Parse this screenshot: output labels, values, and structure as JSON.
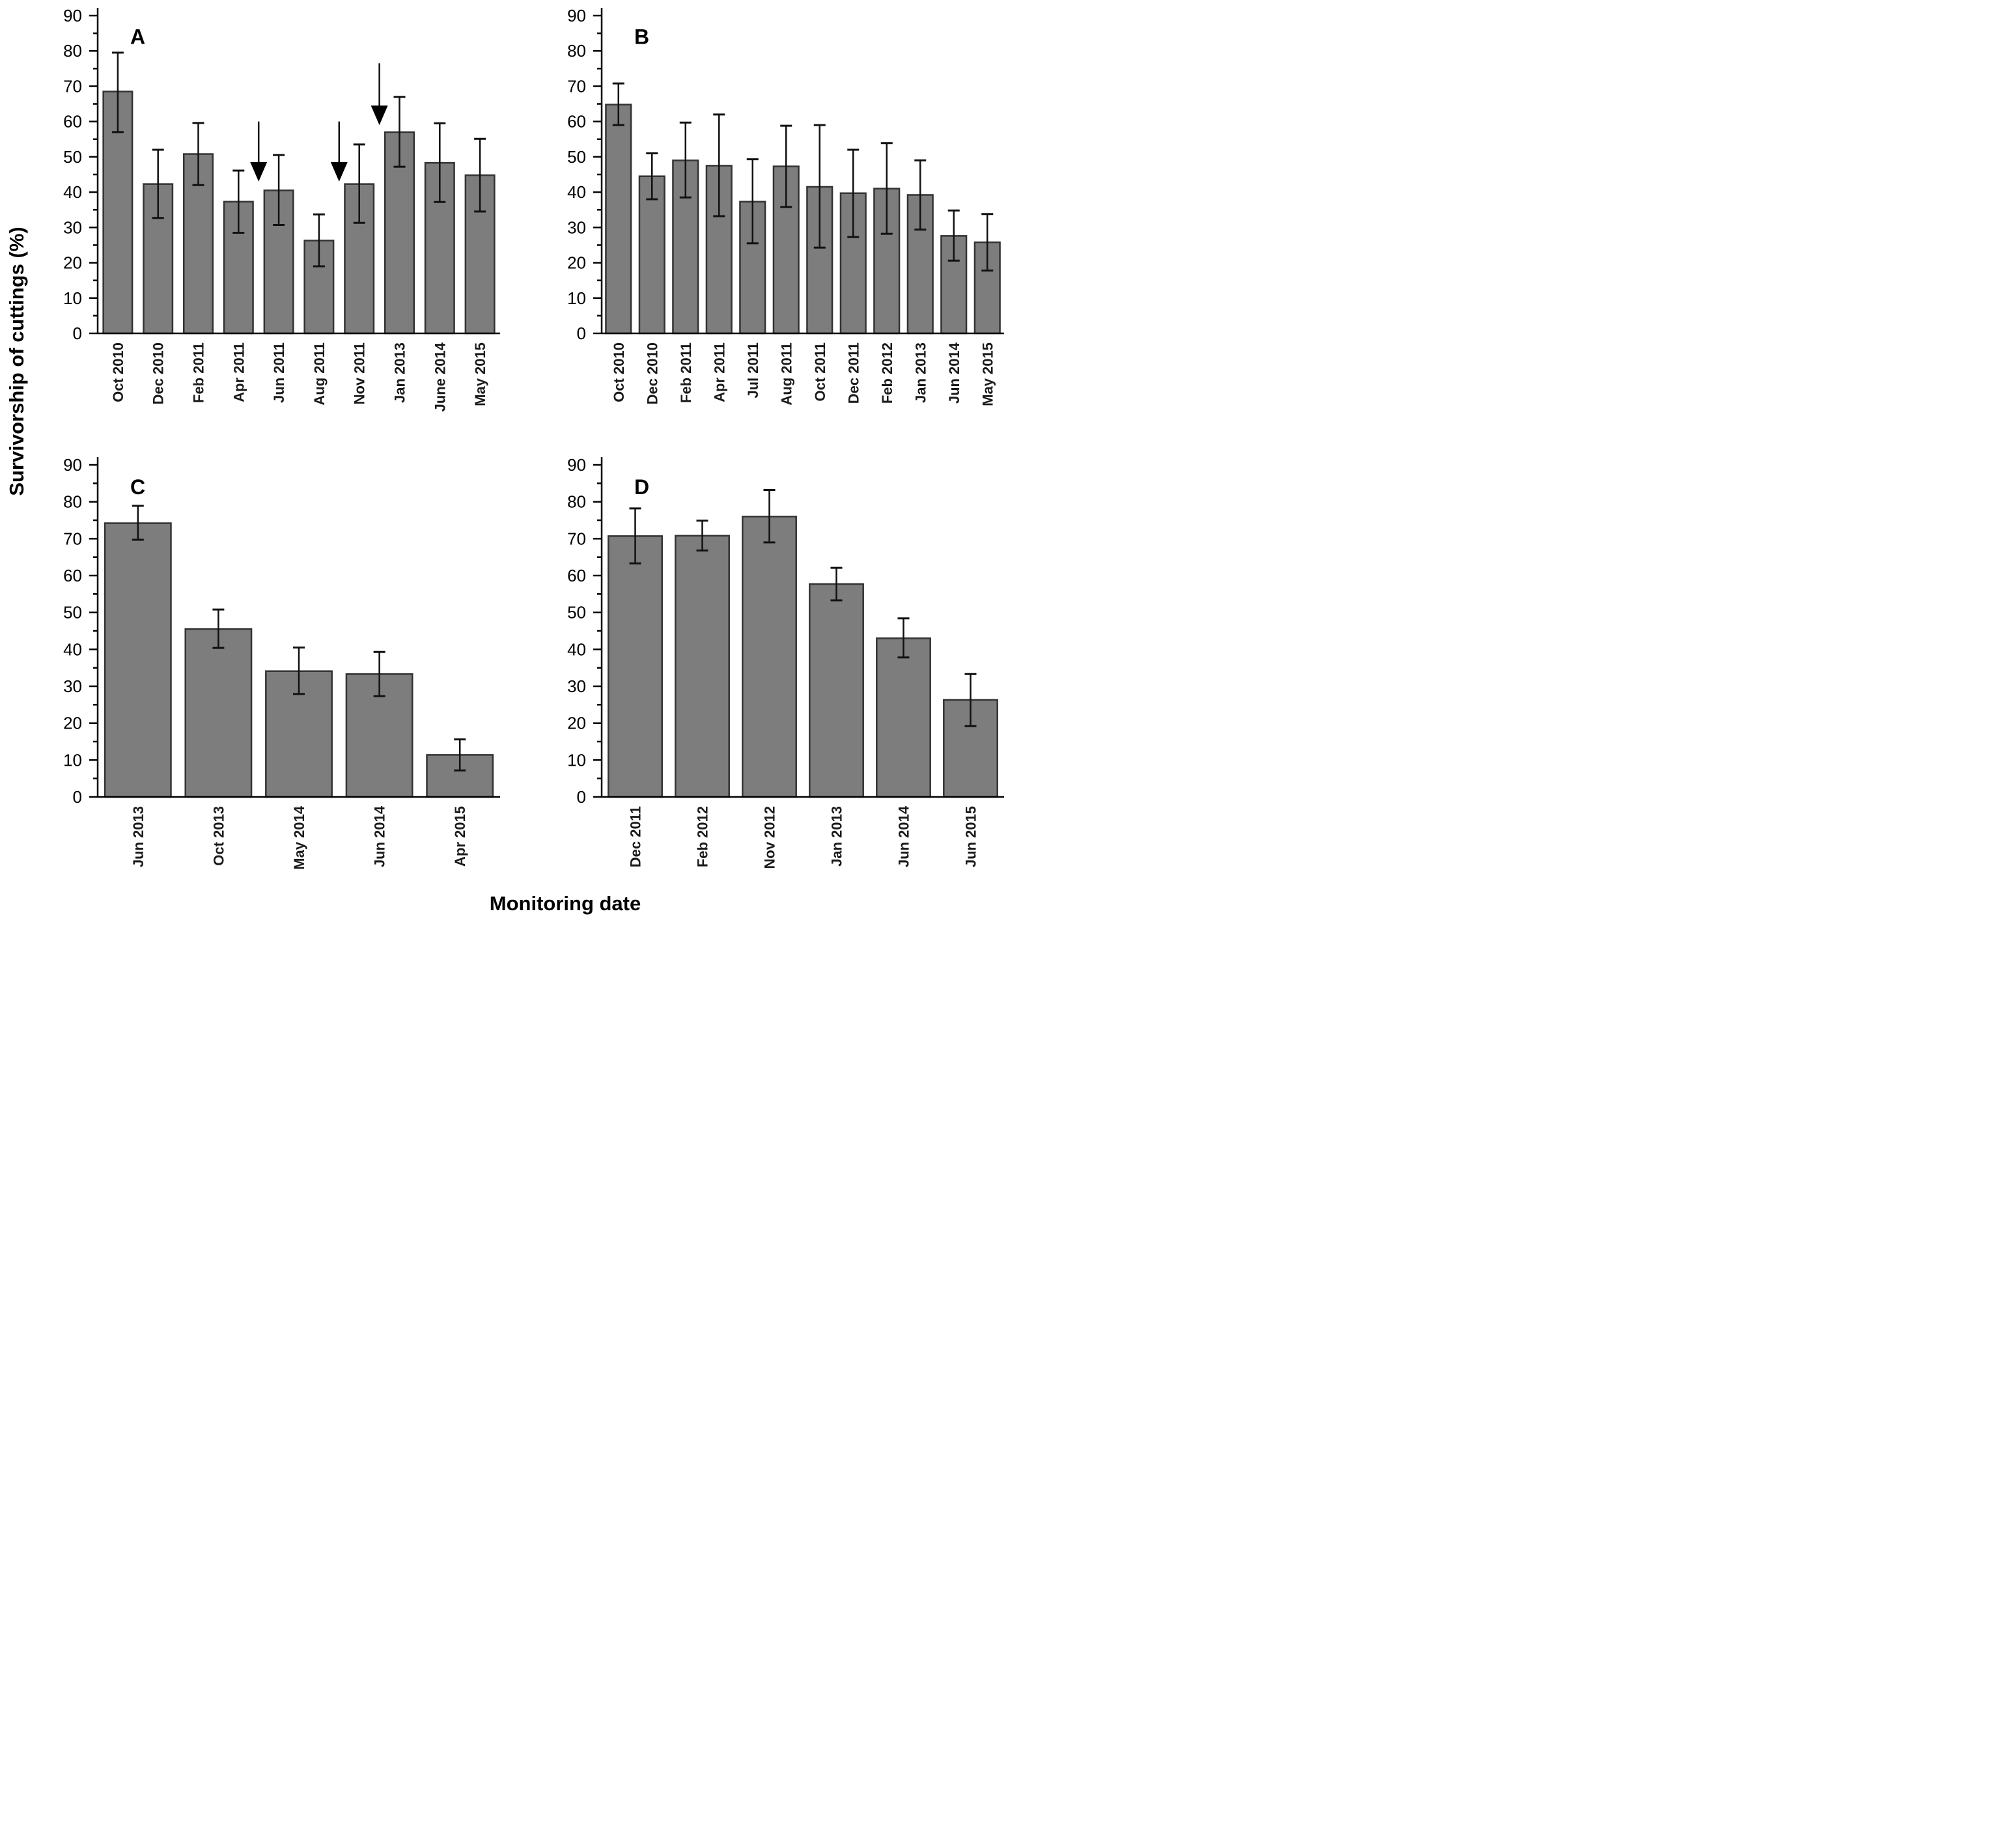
{
  "figure": {
    "ylabel": "Survivorship of cuttings (%)",
    "xlabel": "Monitoring date",
    "bar_color": "#7d7d7d",
    "bar_border_color": "#333333",
    "axis_color": "#000000",
    "axis": {
      "ymin": 0,
      "ymax": 90,
      "major": 10,
      "minor": 5
    }
  },
  "chart_data": [
    {
      "type": "bar",
      "panel": "A",
      "title": "",
      "xlabel": "",
      "ylabel": "Survivorship of cuttings (%)",
      "ylim": [
        0,
        90
      ],
      "bar_ratio": 0.72,
      "categories": [
        "Oct 2010",
        "Dec 2010",
        "Feb 2011",
        "Apr 2011",
        "Jun 2011",
        "Aug 2011",
        "Nov 2011",
        "Jan 2013",
        "June 2014",
        "May 2015"
      ],
      "values": [
        68.5,
        42.3,
        50.8,
        37.3,
        40.5,
        26.3,
        42.3,
        57.0,
        48.3,
        44.8
      ],
      "error_up": [
        11.0,
        9.7,
        8.8,
        8.8,
        10.0,
        7.4,
        11.2,
        10.0,
        11.2,
        10.3
      ],
      "error_down": [
        11.5,
        9.6,
        8.8,
        8.8,
        9.8,
        7.3,
        11.0,
        9.8,
        11.1,
        10.3
      ],
      "annotations": {
        "arrows": [
          {
            "type": "down-arrow",
            "x_boundary": 4,
            "y_top": 60.0,
            "y_tip": 43.0
          },
          {
            "type": "down-arrow",
            "x_boundary": 6,
            "y_top": 60.0,
            "y_tip": 43.0
          },
          {
            "type": "down-arrow",
            "x_boundary": 7,
            "y_top": 76.5,
            "y_tip": 59.0
          }
        ]
      }
    },
    {
      "type": "bar",
      "panel": "B",
      "title": "",
      "xlabel": "",
      "ylabel": "Survivorship of cuttings (%)",
      "ylim": [
        0,
        90
      ],
      "bar_ratio": 0.75,
      "categories": [
        "Oct 2010",
        "Dec 2010",
        "Feb 2011",
        "Apr 2011",
        "Jul 2011",
        "Aug 2011",
        "Oct 2011",
        "Dec 2011",
        "Feb 2012",
        "Jan 2013",
        "Jun 2014",
        "May 2015"
      ],
      "values": [
        64.8,
        44.5,
        49.0,
        47.5,
        37.3,
        47.3,
        41.5,
        39.7,
        41.0,
        39.2,
        27.6,
        25.8
      ],
      "error_up": [
        6.0,
        6.5,
        10.7,
        14.5,
        12.0,
        11.5,
        17.5,
        12.3,
        12.9,
        9.8,
        7.2,
        8.0
      ],
      "error_down": [
        5.8,
        6.5,
        10.5,
        14.3,
        11.8,
        11.5,
        17.2,
        12.4,
        12.8,
        9.8,
        7.0,
        8.0
      ],
      "annotations": {
        "arrows": []
      }
    },
    {
      "type": "bar",
      "panel": "C",
      "title": "",
      "xlabel": "Monitoring date",
      "ylabel": "Survivorship of cuttings (%)",
      "ylim": [
        0,
        90
      ],
      "bar_ratio": 0.82,
      "categories": [
        "Jun 2013",
        "Oct 2013",
        "May 2014",
        "Jun 2014",
        "Apr 2015"
      ],
      "values": [
        74.2,
        45.5,
        34.1,
        33.3,
        11.4
      ],
      "error_up": [
        4.7,
        5.3,
        6.4,
        6.0,
        4.2
      ],
      "error_down": [
        4.5,
        5.1,
        6.2,
        6.0,
        4.2
      ],
      "annotations": {
        "arrows": []
      }
    },
    {
      "type": "bar",
      "panel": "D",
      "title": "",
      "xlabel": "Monitoring date",
      "ylabel": "Survivorship of cuttings (%)",
      "ylim": [
        0,
        90
      ],
      "bar_ratio": 0.8,
      "categories": [
        "Dec 2011",
        "Feb 2012",
        "Nov 2012",
        "Jan 2013",
        "Jun 2014",
        "Jun 2015"
      ],
      "values": [
        70.7,
        70.8,
        76.0,
        57.7,
        43.0,
        26.3
      ],
      "error_up": [
        7.5,
        4.1,
        7.2,
        4.4,
        5.4,
        7.0
      ],
      "error_down": [
        7.4,
        4.0,
        7.0,
        4.4,
        5.2,
        7.1
      ],
      "annotations": {
        "arrows": []
      }
    }
  ]
}
